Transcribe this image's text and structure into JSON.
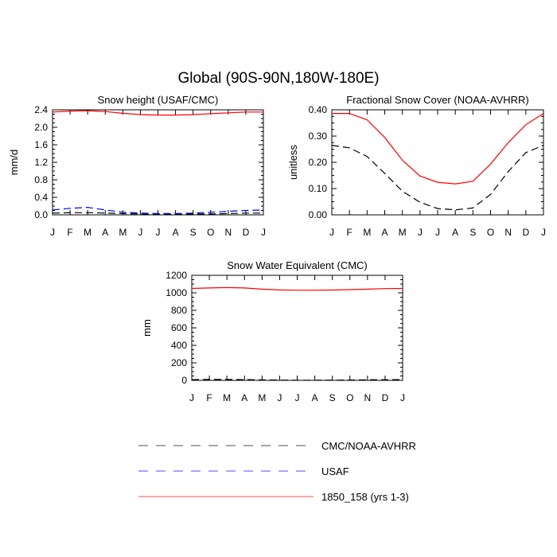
{
  "page": {
    "title": "Global (90S-90N,180W-180E)"
  },
  "legend": {
    "entries": [
      {
        "label": "CMC/NOAA-AVHRR",
        "color": "#000000",
        "dash": "dashed"
      },
      {
        "label": "USAF",
        "color": "#0000ff",
        "dash": "dashed"
      },
      {
        "label": "1850_158 (yrs 1-3)",
        "color": "#ff0000",
        "dash": "solid"
      }
    ]
  },
  "chart_data": [
    {
      "type": "line",
      "title": "Snow height (USAF/CMC)",
      "ylabel": "mm/d",
      "xlabel": "",
      "categories": [
        "J",
        "F",
        "M",
        "A",
        "M",
        "J",
        "J",
        "A",
        "S",
        "O",
        "N",
        "D",
        "J"
      ],
      "ylim": [
        0,
        2.4
      ],
      "yticks": [
        0.0,
        0.4,
        0.8,
        1.2,
        1.6,
        2.0,
        2.4
      ],
      "ytick_labels": [
        "0.0",
        "0.4",
        "0.8",
        "1.2",
        "1.6",
        "2.0",
        "2.4"
      ],
      "series": [
        {
          "name": "1850_158 (yrs 1-3)",
          "color": "#ff0000",
          "dash": "solid",
          "values": [
            2.35,
            2.37,
            2.38,
            2.36,
            2.32,
            2.29,
            2.28,
            2.28,
            2.29,
            2.31,
            2.33,
            2.35,
            2.35
          ]
        },
        {
          "name": "USAF",
          "color": "#0000ff",
          "dash": "dashed",
          "values": [
            0.11,
            0.15,
            0.17,
            0.11,
            0.06,
            0.04,
            0.03,
            0.03,
            0.04,
            0.06,
            0.08,
            0.1,
            0.11
          ]
        },
        {
          "name": "CMC/NOAA-AVHRR",
          "color": "#000000",
          "dash": "dashed",
          "values": [
            0.04,
            0.05,
            0.05,
            0.04,
            0.03,
            0.02,
            0.01,
            0.01,
            0.02,
            0.02,
            0.03,
            0.04,
            0.04
          ]
        }
      ]
    },
    {
      "type": "line",
      "title": "Fractional Snow Cover (NOAA-AVHRR)",
      "ylabel": "unitless",
      "xlabel": "",
      "categories": [
        "J",
        "F",
        "M",
        "A",
        "M",
        "J",
        "J",
        "A",
        "S",
        "O",
        "N",
        "D",
        "J"
      ],
      "ylim": [
        0,
        0.4
      ],
      "yticks": [
        0.0,
        0.1,
        0.2,
        0.3,
        0.4
      ],
      "ytick_labels": [
        "0.00",
        "0.10",
        "0.20",
        "0.30",
        "0.40"
      ],
      "series": [
        {
          "name": "1850_158 (yrs 1-3)",
          "color": "#ff0000",
          "dash": "solid",
          "values": [
            0.386,
            0.386,
            0.362,
            0.295,
            0.208,
            0.148,
            0.124,
            0.118,
            0.128,
            0.193,
            0.275,
            0.343,
            0.386
          ]
        },
        {
          "name": "CMC/NOAA-AVHRR",
          "color": "#000000",
          "dash": "dashed",
          "values": [
            0.265,
            0.255,
            0.222,
            0.158,
            0.09,
            0.048,
            0.024,
            0.019,
            0.026,
            0.078,
            0.165,
            0.237,
            0.265
          ]
        }
      ]
    },
    {
      "type": "line",
      "title": "Snow Water Equivalent (CMC)",
      "ylabel": "mm",
      "xlabel": "",
      "categories": [
        "J",
        "F",
        "M",
        "A",
        "M",
        "J",
        "J",
        "A",
        "S",
        "O",
        "N",
        "D",
        "J"
      ],
      "ylim": [
        0,
        1200
      ],
      "yticks": [
        0,
        200,
        400,
        600,
        800,
        1000,
        1200
      ],
      "ytick_labels": [
        "0",
        "200",
        "400",
        "600",
        "800",
        "1000",
        "1200"
      ],
      "series": [
        {
          "name": "1850_158 (yrs 1-3)",
          "color": "#ff0000",
          "dash": "solid",
          "values": [
            1050,
            1055,
            1060,
            1055,
            1042,
            1033,
            1030,
            1030,
            1032,
            1036,
            1042,
            1048,
            1050
          ]
        },
        {
          "name": "CMC/NOAA-AVHRR",
          "color": "#000000",
          "dash": "dashed",
          "values": [
            8,
            10,
            10,
            8,
            5,
            3,
            2,
            2,
            3,
            4,
            6,
            7,
            8
          ]
        }
      ]
    }
  ]
}
